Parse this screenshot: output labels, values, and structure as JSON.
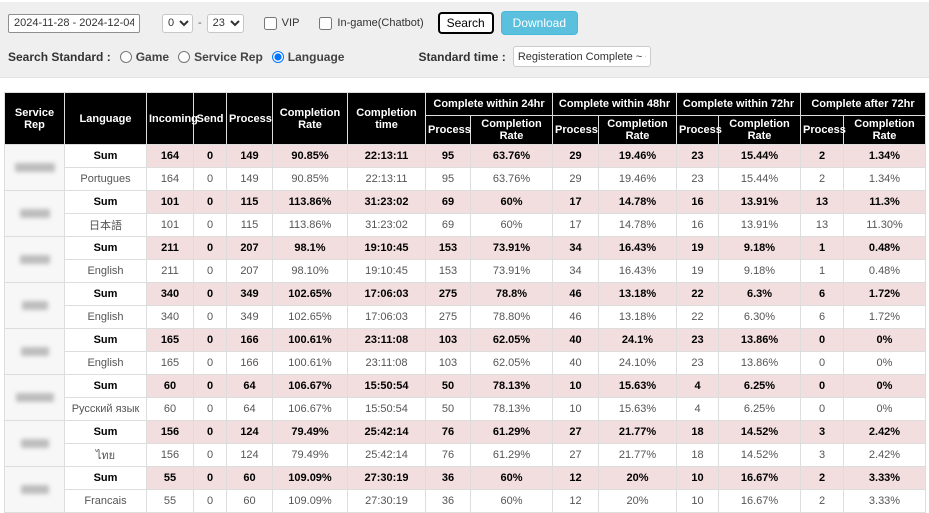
{
  "toolbar": {
    "date_range": "2024-11-28 - 2024-12-04",
    "hour_from": "0",
    "hour_to": "23",
    "hour_separator": "-",
    "vip_label": "VIP",
    "ingame_label": "In-game(Chatbot)",
    "search_label": "Search",
    "download_label": "Download",
    "search_standard_label": "Search Standard :",
    "radios": [
      {
        "label": "Game",
        "selected": false
      },
      {
        "label": "Service Rep",
        "selected": false
      },
      {
        "label": "Language",
        "selected": true
      }
    ],
    "standard_time_label": "Standard time :",
    "standard_time_value": "Registeration Complete ~ Cer"
  },
  "colors": {
    "download_button": "#5bc0de",
    "sum_row_highlight": "#f2dede",
    "table_header_bg": "#000000"
  },
  "table": {
    "header": {
      "main": [
        "Service Rep",
        "Language",
        "Incoming",
        "Send",
        "Process",
        "Completion Rate",
        "Completion time"
      ],
      "groups": [
        "Complete within 24hr",
        "Complete within 48hr",
        "Complete within 72hr",
        "Complete after 72hr"
      ],
      "sub": [
        "Process",
        "Completion Rate"
      ]
    },
    "groups": [
      {
        "service_rep_redacted": true,
        "rows": [
          {
            "label": "Sum",
            "is_sum": true,
            "values": [
              "164",
              "0",
              "149",
              "90.85%",
              "22:13:11",
              "95",
              "63.76%",
              "29",
              "19.46%",
              "23",
              "15.44%",
              "2",
              "1.34%"
            ]
          },
          {
            "label": "Portugues",
            "is_sum": false,
            "values": [
              "164",
              "0",
              "149",
              "90.85%",
              "22:13:11",
              "95",
              "63.76%",
              "29",
              "19.46%",
              "23",
              "15.44%",
              "2",
              "1.34%"
            ]
          }
        ]
      },
      {
        "service_rep_redacted": true,
        "rows": [
          {
            "label": "Sum",
            "is_sum": true,
            "values": [
              "101",
              "0",
              "115",
              "113.86%",
              "31:23:02",
              "69",
              "60%",
              "17",
              "14.78%",
              "16",
              "13.91%",
              "13",
              "11.3%"
            ]
          },
          {
            "label": "日本語",
            "is_sum": false,
            "values": [
              "101",
              "0",
              "115",
              "113.86%",
              "31:23:02",
              "69",
              "60%",
              "17",
              "14.78%",
              "16",
              "13.91%",
              "13",
              "11.30%"
            ]
          }
        ]
      },
      {
        "service_rep_redacted": true,
        "rows": [
          {
            "label": "Sum",
            "is_sum": true,
            "values": [
              "211",
              "0",
              "207",
              "98.1%",
              "19:10:45",
              "153",
              "73.91%",
              "34",
              "16.43%",
              "19",
              "9.18%",
              "1",
              "0.48%"
            ]
          },
          {
            "label": "English",
            "is_sum": false,
            "values": [
              "211",
              "0",
              "207",
              "98.10%",
              "19:10:45",
              "153",
              "73.91%",
              "34",
              "16.43%",
              "19",
              "9.18%",
              "1",
              "0.48%"
            ]
          }
        ]
      },
      {
        "service_rep_redacted": true,
        "rows": [
          {
            "label": "Sum",
            "is_sum": true,
            "values": [
              "340",
              "0",
              "349",
              "102.65%",
              "17:06:03",
              "275",
              "78.8%",
              "46",
              "13.18%",
              "22",
              "6.3%",
              "6",
              "1.72%"
            ]
          },
          {
            "label": "English",
            "is_sum": false,
            "values": [
              "340",
              "0",
              "349",
              "102.65%",
              "17:06:03",
              "275",
              "78.80%",
              "46",
              "13.18%",
              "22",
              "6.30%",
              "6",
              "1.72%"
            ]
          }
        ]
      },
      {
        "service_rep_redacted": true,
        "rows": [
          {
            "label": "Sum",
            "is_sum": true,
            "values": [
              "165",
              "0",
              "166",
              "100.61%",
              "23:11:08",
              "103",
              "62.05%",
              "40",
              "24.1%",
              "23",
              "13.86%",
              "0",
              "0%"
            ]
          },
          {
            "label": "English",
            "is_sum": false,
            "values": [
              "165",
              "0",
              "166",
              "100.61%",
              "23:11:08",
              "103",
              "62.05%",
              "40",
              "24.10%",
              "23",
              "13.86%",
              "0",
              "0%"
            ]
          }
        ]
      },
      {
        "service_rep_redacted": true,
        "rows": [
          {
            "label": "Sum",
            "is_sum": true,
            "values": [
              "60",
              "0",
              "64",
              "106.67%",
              "15:50:54",
              "50",
              "78.13%",
              "10",
              "15.63%",
              "4",
              "6.25%",
              "0",
              "0%"
            ]
          },
          {
            "label": "Русский язык",
            "is_sum": false,
            "values": [
              "60",
              "0",
              "64",
              "106.67%",
              "15:50:54",
              "50",
              "78.13%",
              "10",
              "15.63%",
              "4",
              "6.25%",
              "0",
              "0%"
            ]
          }
        ]
      },
      {
        "service_rep_redacted": true,
        "rows": [
          {
            "label": "Sum",
            "is_sum": true,
            "values": [
              "156",
              "0",
              "124",
              "79.49%",
              "25:42:14",
              "76",
              "61.29%",
              "27",
              "21.77%",
              "18",
              "14.52%",
              "3",
              "2.42%"
            ]
          },
          {
            "label": "ไทย",
            "is_sum": false,
            "values": [
              "156",
              "0",
              "124",
              "79.49%",
              "25:42:14",
              "76",
              "61.29%",
              "27",
              "21.77%",
              "18",
              "14.52%",
              "3",
              "2.42%"
            ]
          }
        ]
      },
      {
        "service_rep_redacted": true,
        "rows": [
          {
            "label": "Sum",
            "is_sum": true,
            "values": [
              "55",
              "0",
              "60",
              "109.09%",
              "27:30:19",
              "36",
              "60%",
              "12",
              "20%",
              "10",
              "16.67%",
              "2",
              "3.33%"
            ]
          },
          {
            "label": "Francais",
            "is_sum": false,
            "values": [
              "55",
              "0",
              "60",
              "109.09%",
              "27:30:19",
              "36",
              "60%",
              "12",
              "20%",
              "10",
              "16.67%",
              "2",
              "3.33%"
            ]
          }
        ]
      }
    ]
  }
}
